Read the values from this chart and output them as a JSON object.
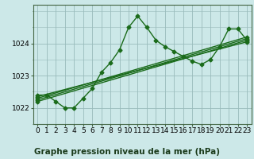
{
  "background_color": "#cce8e8",
  "plot_bg_color": "#cce8e8",
  "grid_color": "#99bbbb",
  "line_color": "#1a6b1a",
  "title": "Graphe pression niveau de la mer (hPa)",
  "ylim": [
    1021.5,
    1025.2
  ],
  "xlim": [
    -0.5,
    23.5
  ],
  "yticks": [
    1022,
    1023,
    1024
  ],
  "xticks": [
    0,
    1,
    2,
    3,
    4,
    5,
    6,
    7,
    8,
    9,
    10,
    11,
    12,
    13,
    14,
    15,
    16,
    17,
    18,
    19,
    20,
    21,
    22,
    23
  ],
  "jagged": [
    1022.4,
    1022.4,
    1022.2,
    1022.0,
    1022.0,
    1022.3,
    1022.6,
    1023.1,
    1023.4,
    1023.8,
    1024.5,
    1024.85,
    1024.5,
    1024.1,
    1023.9,
    1023.75,
    1023.6,
    1023.45,
    1023.35,
    1023.5,
    1023.9,
    1024.45,
    1024.45,
    1024.1
  ],
  "trend_lines": [
    [
      [
        0,
        23
      ],
      [
        1022.35,
        1024.05
      ]
    ],
    [
      [
        0,
        23
      ],
      [
        1022.25,
        1024.15
      ]
    ],
    [
      [
        0,
        23
      ],
      [
        1022.2,
        1024.1
      ]
    ],
    [
      [
        0,
        23
      ],
      [
        1022.3,
        1024.2
      ]
    ]
  ],
  "marker": "D",
  "markersize": 2.5,
  "linewidth": 1.0,
  "title_fontsize": 7.5,
  "tick_fontsize": 6.5
}
